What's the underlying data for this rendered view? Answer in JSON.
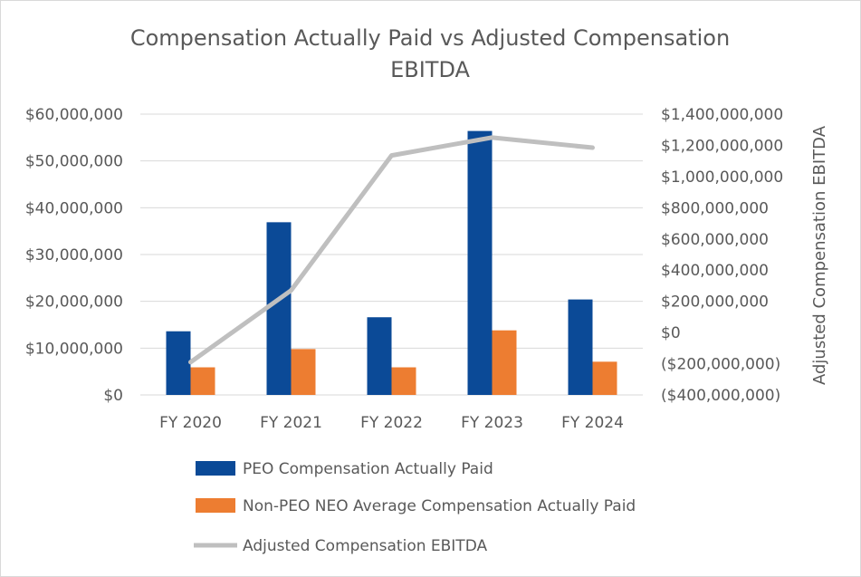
{
  "chart_data": {
    "type": "bar",
    "title_lines": [
      "Compensation Actually Paid vs Adjusted Compensation",
      "EBITDA"
    ],
    "categories": [
      "FY 2020",
      "FY 2021",
      "FY 2022",
      "FY 2023",
      "FY 2024"
    ],
    "series": [
      {
        "name": "PEO Compensation Actually Paid",
        "type": "bar",
        "axis": "left",
        "color": "#0B4A97",
        "values": [
          13600000,
          36900000,
          16600000,
          56400000,
          20400000
        ]
      },
      {
        "name": "Non-PEO NEO Average Compensation Actually Paid",
        "type": "bar",
        "axis": "left",
        "color": "#ED7D31",
        "values": [
          5900000,
          9800000,
          5900000,
          13800000,
          7100000
        ]
      },
      {
        "name": "Adjusted Compensation EBITDA",
        "type": "line",
        "axis": "right",
        "color": "#BFBFBF",
        "values": [
          -190000000,
          270000000,
          1135000000,
          1250000000,
          1185000000
        ]
      }
    ],
    "y_left": {
      "min": 0,
      "max": 60000000,
      "ticks": [
        0,
        10000000,
        20000000,
        30000000,
        40000000,
        50000000,
        60000000
      ],
      "tick_labels": [
        "$0",
        "$10,000,000",
        "$20,000,000",
        "$30,000,000",
        "$40,000,000",
        "$50,000,000",
        "$60,000,000"
      ]
    },
    "y_right": {
      "min": -400000000,
      "max": 1400000000,
      "ticks": [
        -400000000,
        -200000000,
        0,
        200000000,
        400000000,
        600000000,
        800000000,
        1000000000,
        1200000000,
        1400000000
      ],
      "tick_labels": [
        "($400,000,000)",
        "($200,000,000)",
        "$0",
        "$200,000,000",
        "$400,000,000",
        "$600,000,000",
        "$800,000,000",
        "$1,000,000,000",
        "$1,200,000,000",
        "$1,400,000,000"
      ],
      "label": "Adjusted Compensation EBITDA"
    },
    "grid": true,
    "legend_position": "bottom"
  }
}
